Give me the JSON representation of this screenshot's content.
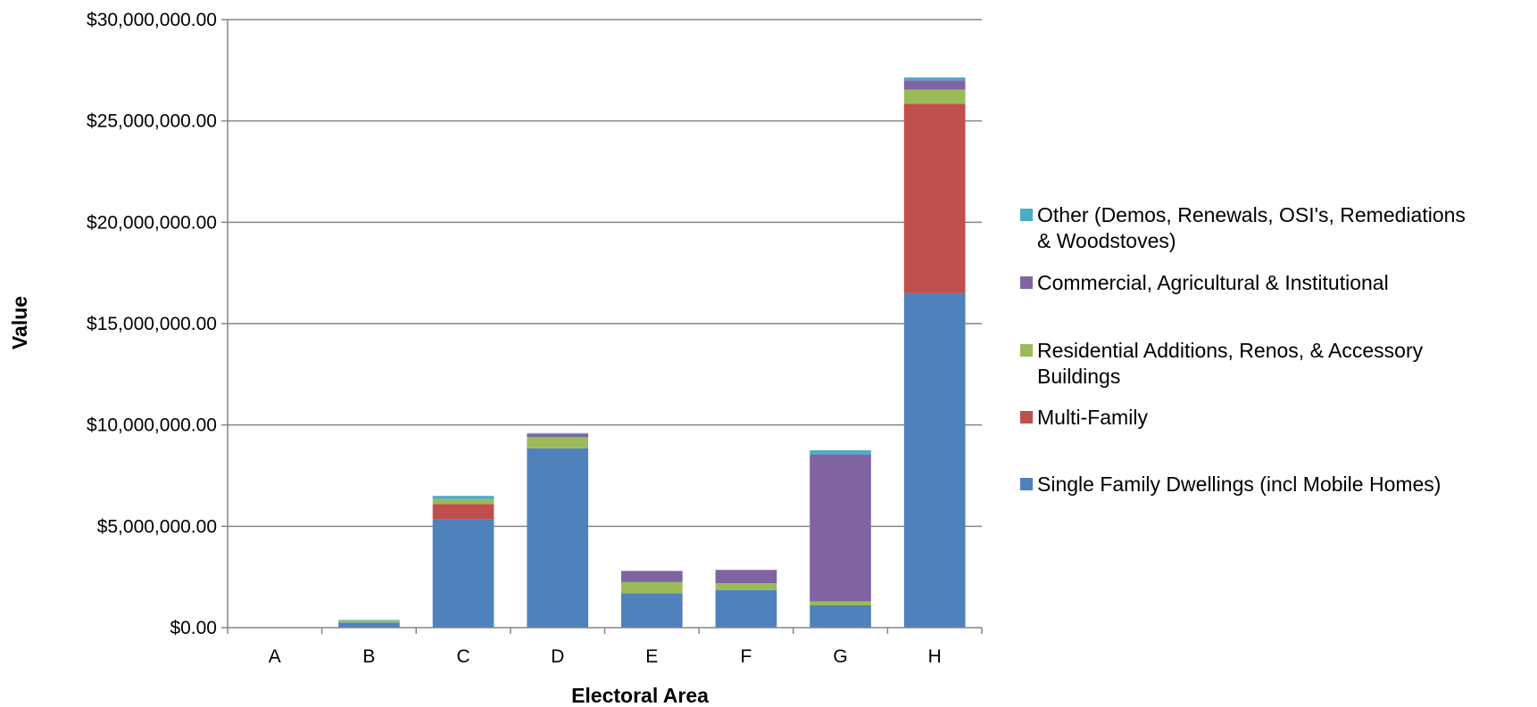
{
  "chart_data": {
    "type": "bar",
    "stacked": true,
    "title": "",
    "xlabel": "Electoral Area",
    "ylabel": "Value",
    "ylim": [
      0,
      30000000
    ],
    "yticks": [
      "$0.00",
      "$5,000,000.00",
      "$10,000,000.00",
      "$15,000,000.00",
      "$20,000,000.00",
      "$25,000,000.00",
      "$30,000,000.00"
    ],
    "ytick_values": [
      0,
      5000000,
      10000000,
      15000000,
      20000000,
      25000000,
      30000000
    ],
    "grid": true,
    "legend_position": "right",
    "categories": [
      "A",
      "B",
      "C",
      "D",
      "E",
      "F",
      "G",
      "H"
    ],
    "series": [
      {
        "name": "Single Family Dwellings (incl Mobile Homes)",
        "color": "#4F81BD",
        "values": [
          0,
          250000,
          5350000,
          8850000,
          1700000,
          1850000,
          1100000,
          16500000
        ]
      },
      {
        "name": "Multi-Family",
        "color": "#C0504D",
        "values": [
          0,
          0,
          750000,
          0,
          0,
          0,
          0,
          9350000
        ]
      },
      {
        "name": "Residential Additions, Renos, & Accessory Buildings",
        "color": "#9BBB59",
        "values": [
          0,
          100000,
          250000,
          550000,
          550000,
          350000,
          200000,
          700000
        ]
      },
      {
        "name": "Commercial, Agricultural & Institutional",
        "color": "#8064A2",
        "values": [
          0,
          0,
          0,
          150000,
          550000,
          650000,
          7250000,
          450000
        ]
      },
      {
        "name": "Other (Demos, Renewals, OSI's, Remediations & Woodstoves)",
        "color": "#4BACC6",
        "values": [
          0,
          30000,
          150000,
          50000,
          0,
          0,
          200000,
          150000
        ]
      }
    ],
    "legend_lines": [
      [
        "Other (Demos, Renewals, OSI's, Remediations",
        "& Woodstoves)"
      ],
      [
        "Commercial, Agricultural & Institutional"
      ],
      [
        "Residential Additions, Renos, & Accessory",
        "Buildings"
      ],
      [
        "Multi-Family"
      ],
      [
        "Single Family Dwellings (incl Mobile Homes)"
      ]
    ]
  }
}
